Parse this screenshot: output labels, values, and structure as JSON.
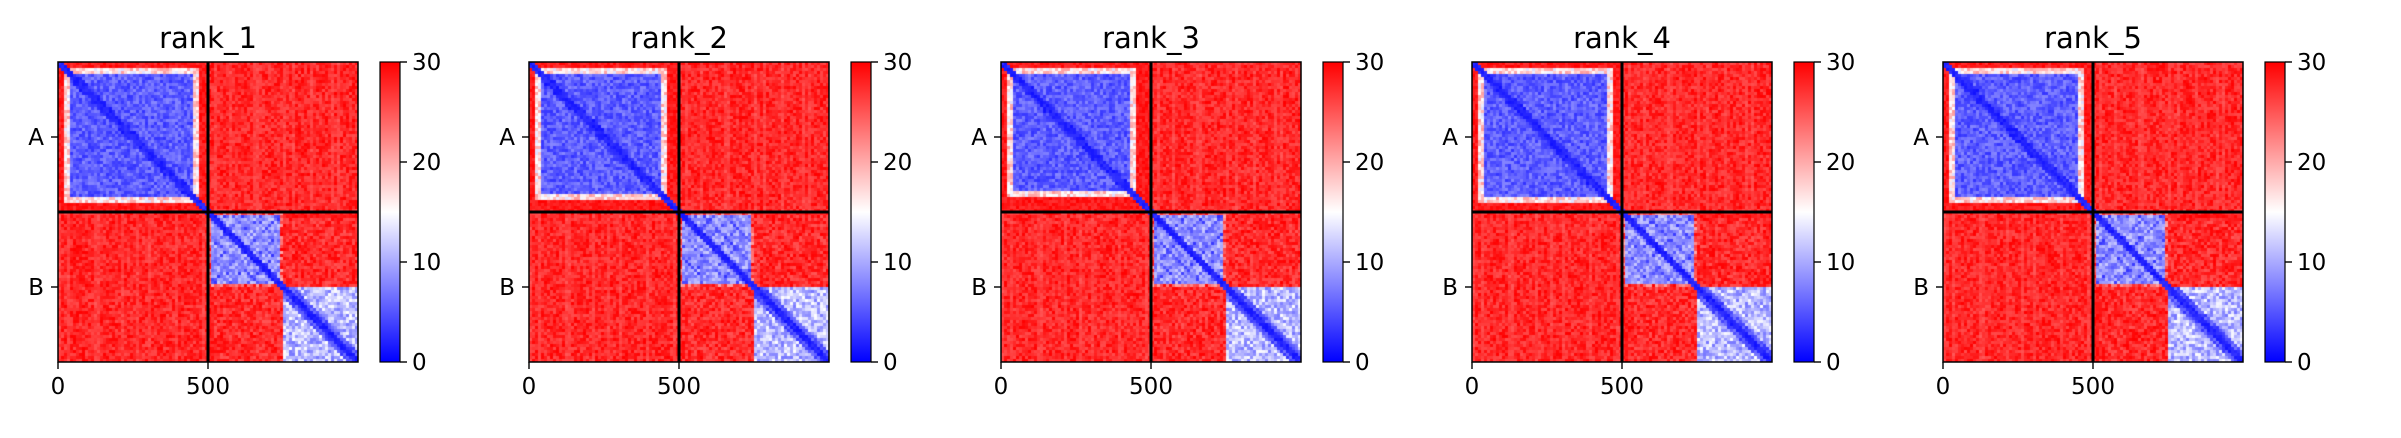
{
  "chart_data": [
    {
      "type": "heatmap",
      "title": "rank_1",
      "x_range": [
        0,
        1000
      ],
      "y_range": [
        1000,
        0
      ],
      "x_ticks": [
        0,
        500
      ],
      "chain_labels": [
        "A",
        "B"
      ],
      "chain_boundary": 500,
      "colorbar": {
        "range": [
          0,
          30
        ],
        "ticks": [
          0,
          10,
          20,
          30
        ],
        "colors": [
          "#0000ff",
          "#ffffff",
          "#ff0000"
        ]
      },
      "domains": [
        [
          0,
          500
        ],
        [
          500,
          750
        ],
        [
          750,
          1000
        ]
      ],
      "shoulder": [
        0.905,
        0.475
      ],
      "domain_a": [
        0.53,
        0.68
      ],
      "domain_b": [
        0.64,
        0.55
      ]
    },
    {
      "type": "heatmap",
      "title": "rank_2",
      "x_range": [
        0,
        1000
      ],
      "y_range": [
        1000,
        0
      ],
      "x_ticks": [
        0,
        500
      ],
      "chain_labels": [
        "A",
        "B"
      ],
      "chain_boundary": 500,
      "colorbar": {
        "range": [
          0,
          30
        ],
        "ticks": [
          0,
          10,
          20,
          30
        ],
        "colors": [
          "#0000ff",
          "#ffffff",
          "#ff0000"
        ]
      },
      "domains": [
        [
          0,
          500
        ],
        [
          500,
          750
        ],
        [
          750,
          1000
        ]
      ],
      "shoulder": [
        0.88,
        0.45
      ],
      "domain_a": [
        0.53,
        0.68
      ],
      "domain_b": [
        0.64,
        0.55
      ]
    },
    {
      "type": "heatmap",
      "title": "rank_3",
      "x_range": [
        0,
        1000
      ],
      "y_range": [
        1000,
        0
      ],
      "x_ticks": [
        0,
        500
      ],
      "chain_labels": [
        "A",
        "B"
      ],
      "chain_boundary": 500,
      "colorbar": {
        "range": [
          0,
          30
        ],
        "ticks": [
          0,
          10,
          20,
          30
        ],
        "colors": [
          "#0000ff",
          "#ffffff",
          "#ff0000"
        ]
      },
      "domains": [
        [
          0,
          500
        ],
        [
          500,
          750
        ],
        [
          750,
          1000
        ]
      ],
      "shoulder": [
        0.87,
        0.44
      ],
      "domain_a": [
        0.53,
        0.68
      ],
      "domain_b": [
        0.64,
        0.55
      ]
    },
    {
      "type": "heatmap",
      "title": "rank_4",
      "x_range": [
        0,
        1000
      ],
      "y_range": [
        1000,
        0
      ],
      "x_ticks": [
        0,
        500
      ],
      "chain_labels": [
        "A",
        "B"
      ],
      "chain_boundary": 500,
      "colorbar": {
        "range": [
          0,
          30
        ],
        "ticks": [
          0,
          10,
          20,
          30
        ],
        "colors": [
          "#0000ff",
          "#ffffff",
          "#ff0000"
        ]
      },
      "domains": [
        [
          0,
          500
        ],
        [
          500,
          750
        ],
        [
          750,
          1000
        ]
      ],
      "shoulder": [
        0.905,
        0.475
      ],
      "domain_a": [
        0.53,
        0.68
      ],
      "domain_b": [
        0.64,
        0.55
      ]
    },
    {
      "type": "heatmap",
      "title": "rank_5",
      "x_range": [
        0,
        1000
      ],
      "y_range": [
        1000,
        0
      ],
      "x_ticks": [
        0,
        500
      ],
      "chain_labels": [
        "A",
        "B"
      ],
      "chain_boundary": 500,
      "colorbar": {
        "range": [
          0,
          30
        ],
        "ticks": [
          0,
          10,
          20,
          30
        ],
        "colors": [
          "#0000ff",
          "#ffffff",
          "#ff0000"
        ]
      },
      "domains": [
        [
          0,
          500
        ],
        [
          500,
          750
        ],
        [
          750,
          1000
        ]
      ],
      "shoulder": [
        0.905,
        0.475
      ],
      "domain_a": [
        0.53,
        0.68
      ],
      "domain_b": [
        0.64,
        0.55
      ]
    }
  ]
}
